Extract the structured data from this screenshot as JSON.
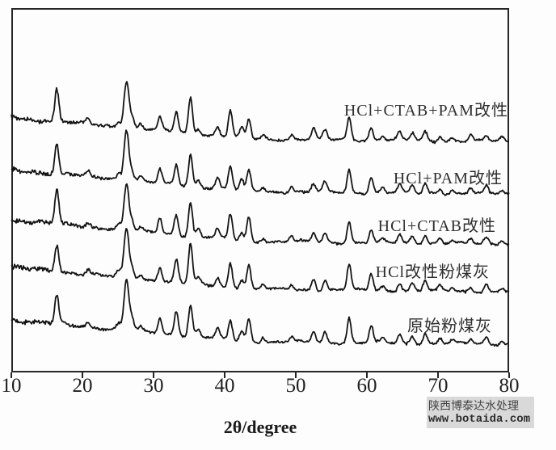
{
  "page": {
    "background": "#fdfdfd",
    "description": "XRD diffraction patterns of raw and modified fly ash samples"
  },
  "watermark": {
    "line1": "陕西博泰达水处理",
    "line2": "www.botaida.com"
  },
  "chart_data": {
    "type": "line",
    "subtype": "stacked-xrd-patterns",
    "title": "",
    "xlabel": "2θ/degree",
    "ylabel": "",
    "xlim": [
      10,
      80
    ],
    "x_ticks": [
      10,
      20,
      30,
      40,
      50,
      60,
      70,
      80
    ],
    "grid": false,
    "legend_position": "inline-right-of-each-trace",
    "line_color": "#141414",
    "series": [
      {
        "label": "HCl+CTAB+PAM改性",
        "stack_index": 0,
        "baseline_offset": 145
      },
      {
        "label": "HCl+PAM改性",
        "stack_index": 1,
        "baseline_offset": 210
      },
      {
        "label": "HCl+CTAB改性",
        "stack_index": 2,
        "baseline_offset": 272
      },
      {
        "label": "HCl改性粉煤灰",
        "stack_index": 3,
        "baseline_offset": 331
      },
      {
        "label": "原始粉煤灰",
        "stack_index": 4,
        "baseline_offset": 396
      }
    ],
    "peaks": [
      {
        "two_theta": 16.4,
        "intensity": 66
      },
      {
        "two_theta": 20.8,
        "intensity": 10
      },
      {
        "two_theta": 25.1,
        "intensity": 14
      },
      {
        "two_theta": 26.2,
        "intensity": 100,
        "sigma": 0.34
      },
      {
        "two_theta": 27.0,
        "intensity": 22
      },
      {
        "two_theta": 28.2,
        "intensity": 10
      },
      {
        "two_theta": 30.9,
        "intensity": 30
      },
      {
        "two_theta": 33.2,
        "intensity": 48
      },
      {
        "two_theta": 35.2,
        "intensity": 80
      },
      {
        "two_theta": 36.3,
        "intensity": 16
      },
      {
        "two_theta": 39.0,
        "intensity": 22
      },
      {
        "two_theta": 40.8,
        "intensity": 50
      },
      {
        "two_theta": 42.4,
        "intensity": 20
      },
      {
        "two_theta": 43.4,
        "intensity": 46
      },
      {
        "two_theta": 45.4,
        "intensity": 10
      },
      {
        "two_theta": 49.4,
        "intensity": 12
      },
      {
        "two_theta": 52.5,
        "intensity": 22
      },
      {
        "two_theta": 54.1,
        "intensity": 24
      },
      {
        "two_theta": 57.5,
        "intensity": 55
      },
      {
        "two_theta": 60.6,
        "intensity": 32
      },
      {
        "two_theta": 62.2,
        "intensity": 10
      },
      {
        "two_theta": 64.6,
        "intensity": 18
      },
      {
        "two_theta": 66.4,
        "intensity": 17
      },
      {
        "two_theta": 68.2,
        "intensity": 22
      },
      {
        "two_theta": 70.3,
        "intensity": 12
      },
      {
        "two_theta": 72.0,
        "intensity": 8
      },
      {
        "two_theta": 74.6,
        "intensity": 12
      },
      {
        "two_theta": 76.8,
        "intensity": 14
      },
      {
        "two_theta": 79.0,
        "intensity": 8
      }
    ]
  }
}
